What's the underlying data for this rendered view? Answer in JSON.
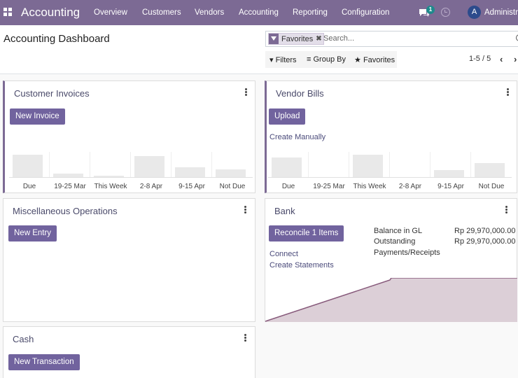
{
  "navbar": {
    "app_name": "Accounting",
    "menu": [
      "Overview",
      "Customers",
      "Vendors",
      "Accounting",
      "Reporting",
      "Configuration"
    ],
    "messages_badge": "1",
    "avatar_letter": "A",
    "user_name": "Administrator",
    "color": "#7c6a94"
  },
  "control_panel": {
    "title": "Accounting Dashboard",
    "facet_label": "Favorites",
    "search_placeholder": "Search...",
    "filters_label": "Filters",
    "groupby_label": "Group By",
    "favorites_label": "Favorites",
    "pager": "1-5 / 5"
  },
  "cards": {
    "customer_invoices": {
      "title": "Customer Invoices",
      "button": "New Invoice",
      "chart_labels": [
        "Due",
        "19-25 Mar",
        "This Week",
        "2-8 Apr",
        "9-15 Apr",
        "Not Due"
      ],
      "chart_levels": [
        0.95,
        0.15,
        0.07,
        0.88,
        0.42,
        0.33
      ]
    },
    "vendor_bills": {
      "title": "Vendor Bills",
      "button": "Upload",
      "link": "Create Manually",
      "chart_labels": [
        "Due",
        "19-25 Mar",
        "This Week",
        "2-8 Apr",
        "9-15 Apr",
        "Not Due"
      ],
      "chart_levels": [
        0.82,
        0.0,
        0.95,
        0.0,
        0.28,
        0.6
      ]
    },
    "misc": {
      "title": "Miscellaneous Operations",
      "button": "New Entry"
    },
    "bank": {
      "title": "Bank",
      "button": "Reconcile 1 Items",
      "links": [
        "Connect",
        "Create Statements"
      ],
      "balance_label": "Balance in GL",
      "balance_value": "Rp 29,970,000.00",
      "outstanding_label_1": "Outstanding",
      "outstanding_label_2": "Payments/Receipts",
      "outstanding_value": "Rp 29,970,000.00"
    },
    "cash": {
      "title": "Cash",
      "button": "New Transaction"
    }
  }
}
